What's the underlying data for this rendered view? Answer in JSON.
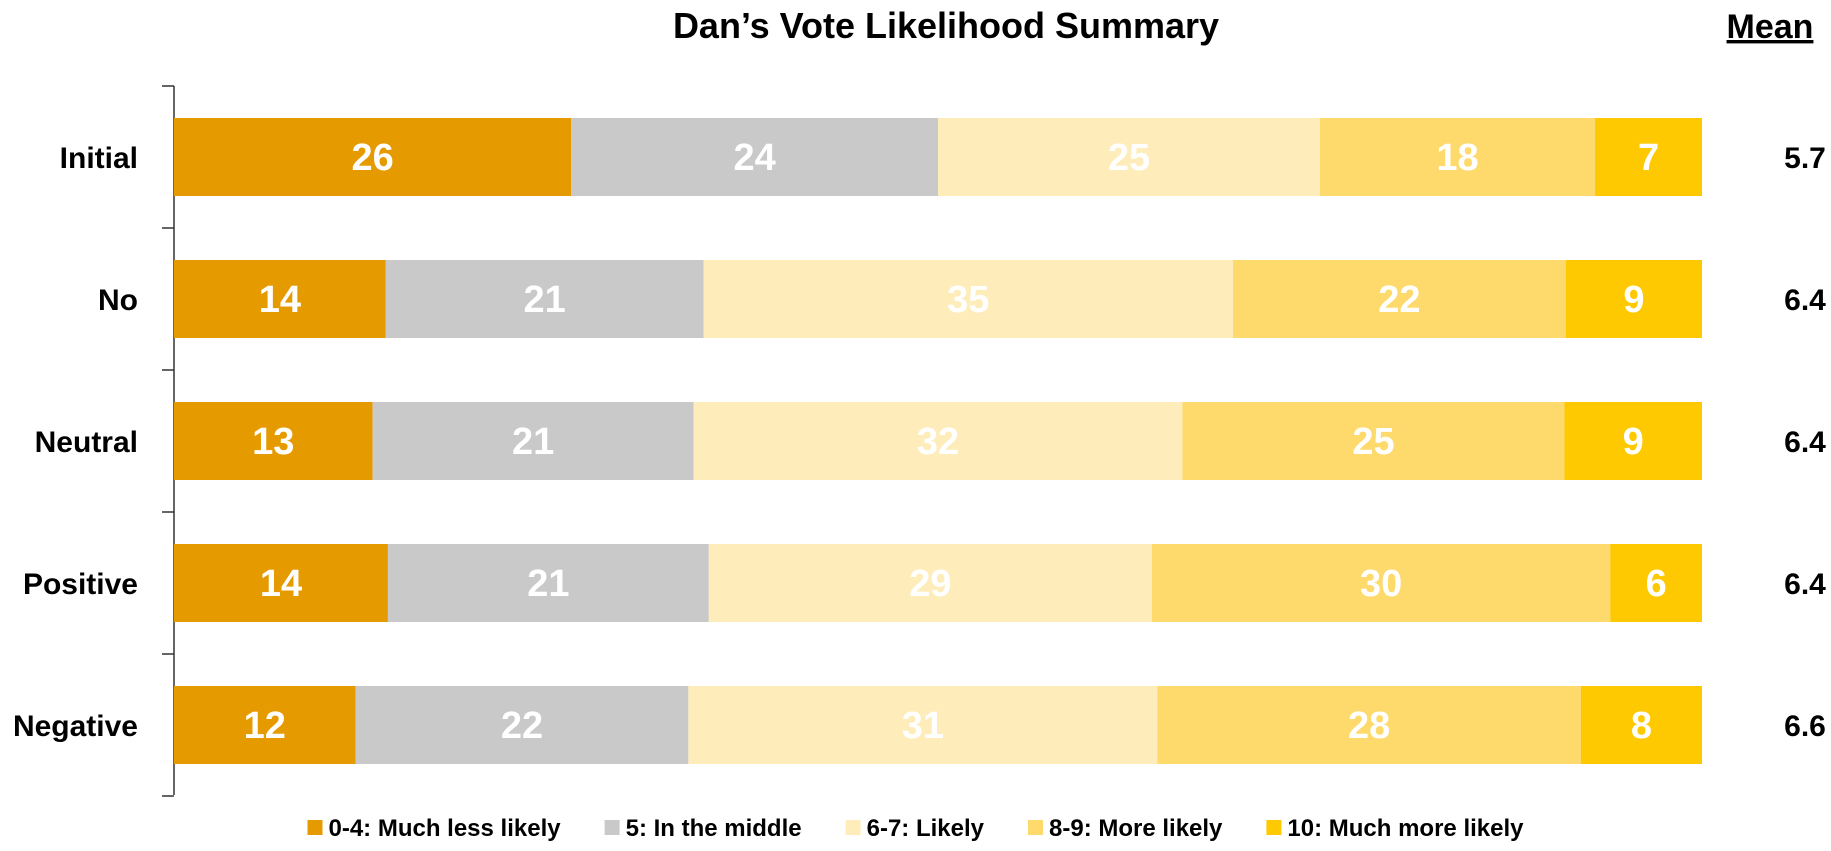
{
  "chart_data": {
    "type": "bar",
    "orientation": "horizontal",
    "stacked": true,
    "title": "Dan’s Vote Likelihood Summary",
    "mean_header": "Mean",
    "categories": [
      "Initial",
      "No",
      "Neutral",
      "Positive",
      "Negative"
    ],
    "series": [
      {
        "name": "0-4: Much less likely",
        "color": "#E59A00",
        "values": [
          26,
          14,
          13,
          14,
          12
        ]
      },
      {
        "name": "5: In the middle",
        "color": "#C9C9C9",
        "values": [
          24,
          21,
          21,
          21,
          22
        ]
      },
      {
        "name": "6-7: Likely",
        "color": "#FEEDBA",
        "values": [
          25,
          35,
          32,
          29,
          31
        ]
      },
      {
        "name": "8-9: More likely",
        "color": "#FDDA6B",
        "values": [
          18,
          22,
          25,
          30,
          28
        ]
      },
      {
        "name": "10: Much more likely",
        "color": "#FEC900",
        "values": [
          7,
          9,
          9,
          6,
          8
        ]
      }
    ],
    "means": [
      "5.7",
      "6.4",
      "6.4",
      "6.4",
      "6.6"
    ],
    "legend_position": "bottom",
    "grid": false
  }
}
